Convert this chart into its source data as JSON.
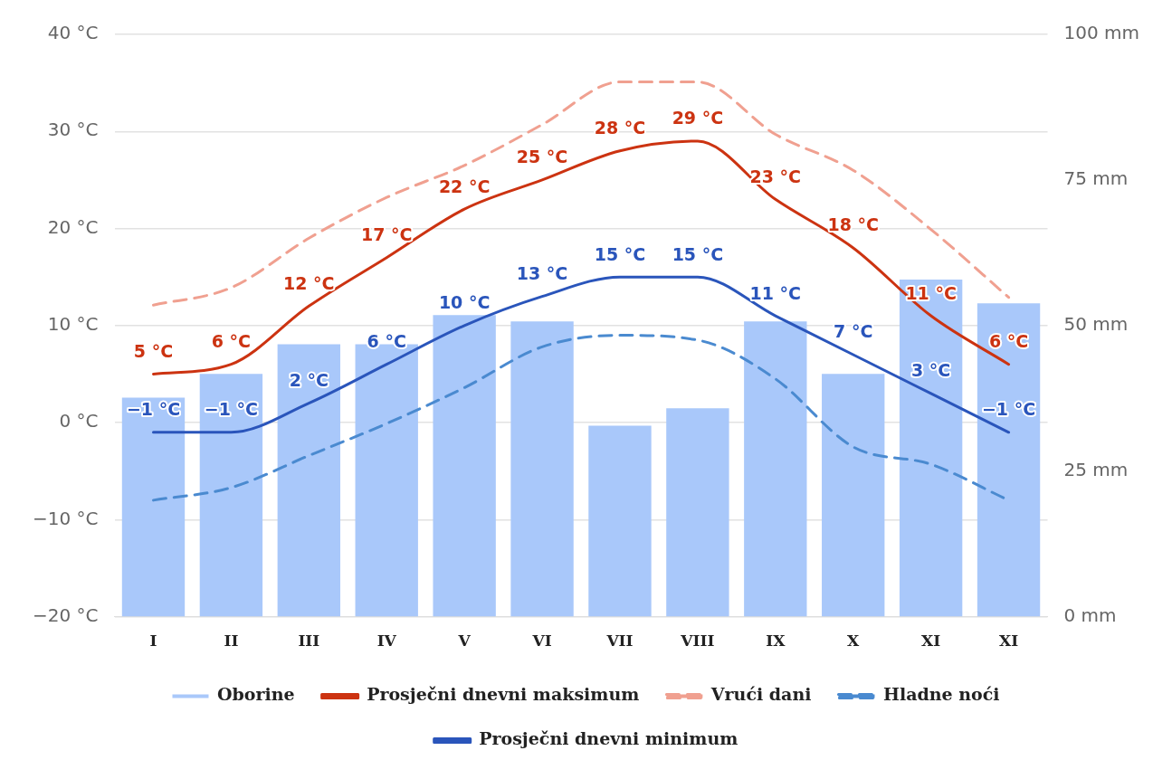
{
  "chart_data": {
    "type": "bar",
    "categories": [
      "I",
      "II",
      "III",
      "IV",
      "V",
      "VI",
      "VII",
      "VIII",
      "IX",
      "X",
      "XI",
      "XI"
    ],
    "series": [
      {
        "name": "Oborine",
        "type": "bar",
        "axis": "y2",
        "color": "#a9c8fa",
        "values": [
          37.6,
          41.7,
          46.8,
          46.8,
          51.8,
          50.7,
          32.8,
          35.8,
          50.7,
          41.7,
          57.9,
          53.8
        ]
      },
      {
        "name": "Prosječni dnevni maksimum",
        "type": "line",
        "line_style": "solid",
        "color": "#cc3311",
        "values": [
          5,
          6,
          12,
          17,
          22,
          25,
          28,
          29,
          23,
          18,
          11,
          6
        ],
        "value_labels": [
          "5 °C",
          "6 °C",
          "12 °C",
          "17 °C",
          "22 °C",
          "25 °C",
          "28 °C",
          "29 °C",
          "23 °C",
          "18 °C",
          "11 °C",
          "6 °C"
        ]
      },
      {
        "name": "Vrući dani",
        "type": "line",
        "line_style": "dashed",
        "color": "#f0a090",
        "values": [
          12.1,
          13.9,
          19,
          23.2,
          26.5,
          30.7,
          35.1,
          35.1,
          29.7,
          26,
          19.9,
          12.9
        ]
      },
      {
        "name": "Hladne noći",
        "type": "line",
        "line_style": "dashed",
        "color": "#4a8ad0",
        "values": [
          -8,
          -6.7,
          -3.4,
          -0.1,
          3.6,
          7.8,
          9,
          8.5,
          4.5,
          -2.5,
          -4.3,
          -8
        ]
      },
      {
        "name": "Prosječni dnevni minimum",
        "type": "line",
        "line_style": "solid",
        "color": "#2a55bb",
        "values": [
          -1,
          -1,
          2,
          6,
          10,
          13,
          15,
          15,
          11,
          7,
          3,
          -1
        ],
        "value_labels": [
          "−1 °C",
          "−1 °C",
          "2 °C",
          "6 °C",
          "10 °C",
          "13 °C",
          "15 °C",
          "15 °C",
          "11 °C",
          "7 °C",
          "3 °C",
          "−1 °C"
        ]
      }
    ],
    "ylim": [
      -20,
      40
    ],
    "yticks": [
      {
        "value": -20,
        "label": "−20 °C"
      },
      {
        "value": -10,
        "label": "−10 °C"
      },
      {
        "value": 0,
        "label": "0 °C"
      },
      {
        "value": 10,
        "label": "10 °C"
      },
      {
        "value": 20,
        "label": "20 °C"
      },
      {
        "value": 30,
        "label": "30 °C"
      },
      {
        "value": 40,
        "label": "40 °C"
      }
    ],
    "y2lim": [
      0,
      100
    ],
    "y2ticks": [
      {
        "value": 0,
        "label": "0 mm"
      },
      {
        "value": 25,
        "label": "25 mm"
      },
      {
        "value": 50,
        "label": "50 mm"
      },
      {
        "value": 75,
        "label": "75 mm"
      },
      {
        "value": 100,
        "label": "100 mm"
      }
    ],
    "grid": "y",
    "legend": "bottom",
    "marker": "none"
  }
}
